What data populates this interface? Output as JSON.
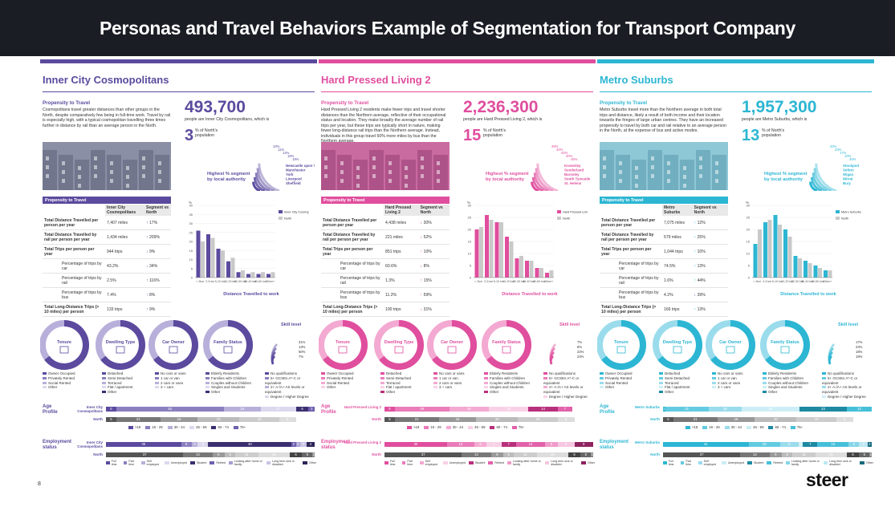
{
  "title": "Personas and Travel Behaviors Example of Segmentation for Transport Company",
  "page_number": "8",
  "logo": "steer",
  "colors": {
    "p1": "#5b4a9e",
    "p2": "#e04e9e",
    "p3": "#2cb6d3"
  },
  "panels": [
    {
      "name": "Inner City Cosmopolitans",
      "prop_title": "Propensity to Travel",
      "prop_text": "Cosmopolitans travel greater distances than other groups in the North, despite comparatively few being in full-time work. Travel by rail is especially high, with a typical cosmopolitan travelling three times further in distance by rail than an average person in the North.",
      "big_number": "493,700",
      "big_sub": "people are Inner City Cosmopolitans, which is",
      "pct": "3",
      "pct_label": "% of North's population",
      "highest_label": "Highest % segment by local authority",
      "las": [
        "Newcastle upon Tyne",
        "Manchester",
        "York",
        "Liverpool",
        "Sheffield"
      ],
      "la_pcts": [
        "10%",
        "11%",
        "14%",
        "16%",
        "19%"
      ],
      "table_header": "Propensity to Travel",
      "col1": "Inner City Cosmopolitans",
      "col2": "Segment vs North",
      "rows": [
        {
          "label": "Total Distance Travelled per person per year",
          "v": "7,407 miles",
          "c": "17%",
          "up": true
        },
        {
          "label": "Total Distance Travelled by rail per person per year",
          "v": "1,434 miles",
          "c": "209%",
          "up": true
        },
        {
          "label": "Total Trips per person per year",
          "v": "944 trips",
          "c": "9%",
          "up": false
        },
        {
          "label": "Percentage of trips by car",
          "v": "43.2%",
          "c": "34%",
          "up": false,
          "sub": true
        },
        {
          "label": "Percentage of trips by rail",
          "v": "2.5%",
          "c": "116%",
          "up": true,
          "sub": true
        },
        {
          "label": "Percentage of trips by bus",
          "v": "7.4%",
          "c": "8%",
          "up": true,
          "sub": true
        },
        {
          "label": "Total Long-Distance Trips (> 10 miles) per person",
          "v": "133 trips",
          "c": "9%",
          "up": true
        }
      ],
      "chart_label": "Distance Travelled to work",
      "donuts": [
        "Tenure",
        "Dwelling Type",
        "Car Owner",
        "Family Status",
        "Skill level"
      ],
      "skill_pcts": [
        "31%",
        "13%",
        "50%",
        "7%"
      ],
      "age_label": "Age Profile",
      "emp_label": "Employment status",
      "seg_row_label": "Inner City Cosmopolitans",
      "north_label": "North"
    },
    {
      "name": "Hard Pressed Living 2",
      "prop_title": "Propensity to Travel",
      "prop_text": "Hard Pressed Living 2 residents make fewer trips and travel shorter distances than the Northern average, reflective of their occupational status and location. They make broadly the average number of rail trips per year, but these trips are typically short in nature, making fewer long-distance rail trips than the Northern average. Instead, individuals in this group travel 60% more miles by bus than the Northern average.",
      "big_number": "2,236,300",
      "big_sub": "people are Hard Pressed Living 2, which is",
      "pct": "15",
      "pct_label": "% of North's population",
      "highest_label": "Highest % segment by local authority",
      "las": [
        "Knowsley",
        "Sunderland",
        "Barnsley",
        "South Tyneside",
        "St. Helens"
      ],
      "la_pcts": [
        "39%",
        "40%",
        "40%",
        "40%",
        "45%"
      ],
      "table_header": "Propensity to Travel",
      "col1": "Hard Pressed Living 2",
      "col2": "Segment vs North",
      "rows": [
        {
          "label": "Total Distance Travelled per person per year",
          "v": "4,438 miles",
          "c": "30%",
          "up": false
        },
        {
          "label": "Total Distance Travelled by rail per person per year",
          "v": "221 miles",
          "c": "52%",
          "up": false
        },
        {
          "label": "Total Trips per person per year",
          "v": "851 trips",
          "c": "10%",
          "up": true
        },
        {
          "label": "Percentage of trips by car",
          "v": "60.6%",
          "c": "8%",
          "up": false,
          "sub": true
        },
        {
          "label": "Percentage of trips by rail",
          "v": "1.3%",
          "c": "15%",
          "up": true,
          "sub": true
        },
        {
          "label": "Percentage of trips by bus",
          "v": "11.2%",
          "c": "59%",
          "up": true,
          "sub": true
        },
        {
          "label": "Total Long-Distance Trips (> 10 miles) per person",
          "v": "100 trips",
          "c": "31%",
          "up": false
        }
      ],
      "chart_label": "Distance Travelled to work",
      "donuts": [
        "Tenure",
        "Dwelling Type",
        "Car Owner",
        "Family Status",
        "Skill level"
      ],
      "skill_pcts": [
        "7%",
        "8%",
        "22%",
        "24%"
      ],
      "age_label": "Age Profile",
      "emp_label": "Employment status",
      "seg_row_label": "Hard Pressed Living 2",
      "north_label": "North"
    },
    {
      "name": "Metro Suburbs",
      "prop_title": "Propensity to Travel",
      "prop_text": "Metro Suburbs travel more than the Northern average in both total trips and distance, likely a result of both income and their location towards the fringes of large urban centres. They have an increased propensity to travel by both car and rail relative to an average person in the North, at the expense of bus and active modes.",
      "big_number": "1,957,300",
      "big_sub": "people are Metro Suburbs, which is",
      "pct": "13",
      "pct_label": "% of North's population",
      "highest_label": "Highest % segment by local authority",
      "las": [
        "Stockport",
        "Sefton",
        "Wigan",
        "Wirral",
        "Bury"
      ],
      "la_pcts": [
        "32%",
        "23%",
        "17%",
        "10%",
        "40%"
      ],
      "table_header": "Propensity to Travel",
      "col1": "Metro Suburbs",
      "col2": "Segment vs North",
      "rows": [
        {
          "label": "Total Distance Travelled per person per year",
          "v": "7,075 miles",
          "c": "12%",
          "up": true
        },
        {
          "label": "Total Distance Travelled by rail per person per year",
          "v": "579 miles",
          "c": "25%",
          "up": true
        },
        {
          "label": "Total Trips per person per year",
          "v": "1,044 trips",
          "c": "10%",
          "up": true
        },
        {
          "label": "Percentage of trips by car",
          "v": "74.5%",
          "c": "13%",
          "up": true,
          "sub": true
        },
        {
          "label": "Percentage of trips by rail",
          "v": "1.6%",
          "c": "44%",
          "up": true,
          "sub": true
        },
        {
          "label": "Percentage of trips by bus",
          "v": "4.2%",
          "c": "39%",
          "up": false,
          "sub": true
        },
        {
          "label": "Total Long-Distance Trips (> 10 miles) per person",
          "v": "166 trips",
          "c": "13%",
          "up": true
        }
      ],
      "chart_label": "Distance Travelled to work",
      "donuts": [
        "Tenure",
        "Dwelling Type",
        "Car Owner",
        "Family Status",
        "Skill level"
      ],
      "skill_pcts": [
        "17%",
        "23%",
        "18%",
        "19%"
      ],
      "age_label": "Age Profile",
      "emp_label": "Employment status",
      "seg_row_label": "Metro Suburbs",
      "north_label": "North"
    }
  ],
  "legends": {
    "tenure": [
      "Owner Occupied",
      "Privately Rented",
      "Social Rented",
      "Other"
    ],
    "dwelling": [
      "Detached",
      "Semi-Detached",
      "Terraced",
      "Flat / apartment",
      "Other"
    ],
    "car": [
      "No cars or vans",
      "1 car or van",
      "2 cars or vans",
      "3 + cars"
    ],
    "family": [
      "Elderly Residents",
      "Families with Children",
      "Couples without Children",
      "Singles and Students",
      "Other"
    ],
    "skill": [
      "No qualifications",
      "5+ GCSEs A*-C or equivalent",
      "2+ A-/A+ AS levels or equivalent",
      "Degree / Higher Degree"
    ],
    "age": [
      ">18",
      "18 - 29",
      "30 - 44",
      "45 - 59",
      "60 - 74",
      "75+"
    ],
    "employment": [
      "Full time",
      "Part time",
      "Self employed",
      "Unemployed",
      "Student",
      "Retired",
      "Looking after home or family",
      "Long term sick or disabled",
      "Other"
    ]
  },
  "chart_data": [
    {
      "type": "bar",
      "categories": [
        "< 2km",
        "2-5 km",
        "5-10 km",
        "10-20 km",
        "20-30 km",
        "30-40 km",
        "40-60 km",
        "60km+"
      ],
      "series": [
        {
          "name": "Inner City Cosmopolitans",
          "values": [
            26,
            24,
            16,
            9,
            3,
            2,
            2,
            2
          ]
        },
        {
          "name": "North",
          "values": [
            20,
            22,
            15,
            11,
            4,
            3,
            3,
            3
          ]
        }
      ],
      "ylabel": "%",
      "ylim": [
        0,
        40
      ]
    },
    {
      "type": "bar",
      "categories": [
        "< 2km",
        "2-5 km",
        "5-10 km",
        "10-20 km",
        "20-30 km",
        "30-40 km",
        "40-60 km",
        "60km+"
      ],
      "series": [
        {
          "name": "Hard Pressed Living 2",
          "values": [
            20,
            26,
            23,
            17,
            8,
            7,
            4,
            2
          ]
        },
        {
          "name": "North",
          "values": [
            21,
            24,
            23,
            15,
            9,
            7,
            4,
            3
          ]
        }
      ],
      "ylabel": "%",
      "ylim": [
        0,
        30
      ]
    },
    {
      "type": "bar",
      "categories": [
        "< 2km",
        "2-5 km",
        "5-10 km",
        "10-20 km",
        "20-30 km",
        "30-40 km",
        "40-60 km",
        "60km+"
      ],
      "series": [
        {
          "name": "Metro Suburbs",
          "values": [
            14,
            23,
            26,
            20,
            9,
            7,
            5,
            3
          ]
        },
        {
          "name": "North",
          "values": [
            20,
            24,
            22,
            17,
            8,
            6,
            4,
            3
          ]
        }
      ],
      "ylabel": "%",
      "ylim": [
        0,
        30
      ]
    }
  ],
  "age_bars": [
    {
      "seg": [
        5,
        52,
        18,
        17,
        6,
        3
      ],
      "north": [
        5,
        21,
        18,
        20,
        19,
        8
      ]
    },
    {
      "seg": [
        5,
        26,
        19,
        19,
        14,
        7
      ],
      "north": [
        5,
        21,
        18,
        20,
        19,
        8
      ]
    },
    {
      "seg": [
        1,
        21,
        16,
        28,
        23,
        12
      ],
      "north": [
        5,
        21,
        18,
        20,
        19,
        8
      ]
    }
  ],
  "emp_bars": [
    {
      "seg": [
        36,
        5,
        3,
        5,
        40,
        2,
        2,
        3,
        4
      ],
      "north": [
        37,
        14,
        6,
        5,
        11,
        15,
        6,
        5,
        1
      ]
    },
    {
      "seg": [
        30,
        13,
        6,
        7,
        7,
        14,
        6,
        8,
        9
      ],
      "north": [
        37,
        14,
        6,
        5,
        11,
        15,
        6,
        5,
        1
      ]
    },
    {
      "seg": [
        41,
        15,
        9,
        2,
        7,
        15,
        5,
        4,
        2
      ],
      "north": [
        37,
        14,
        6,
        5,
        11,
        15,
        6,
        5,
        1
      ]
    }
  ]
}
